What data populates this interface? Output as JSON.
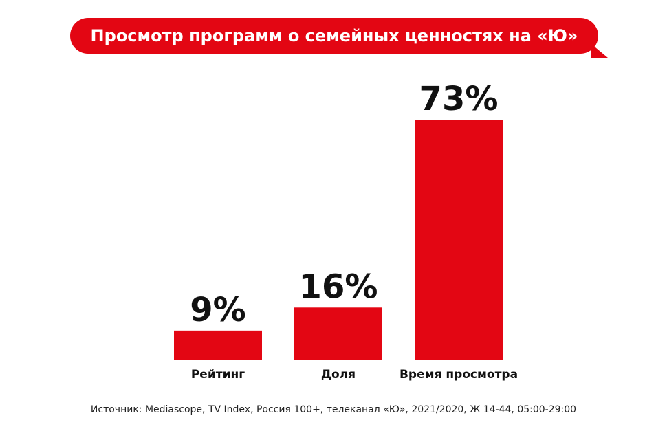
{
  "colors": {
    "accent": "#e30613",
    "text": "#111111"
  },
  "chart_data": {
    "type": "bar",
    "title": "Просмотр программ о семейных ценностях на «Ю»",
    "categories": [
      "Рейтинг",
      "Доля",
      "Время просмотра"
    ],
    "values": [
      9,
      16,
      73
    ],
    "value_labels": [
      "9%",
      "16%",
      "73%"
    ],
    "xlabel": "",
    "ylabel": "",
    "ylim": [
      0,
      73
    ],
    "grid": false,
    "legend": "none"
  },
  "footer": {
    "source": "Источник: Mediascope, TV Index, Россия 100+, телеканал «Ю», 2021/2020, Ж 14-44, 05:00-29:00"
  }
}
